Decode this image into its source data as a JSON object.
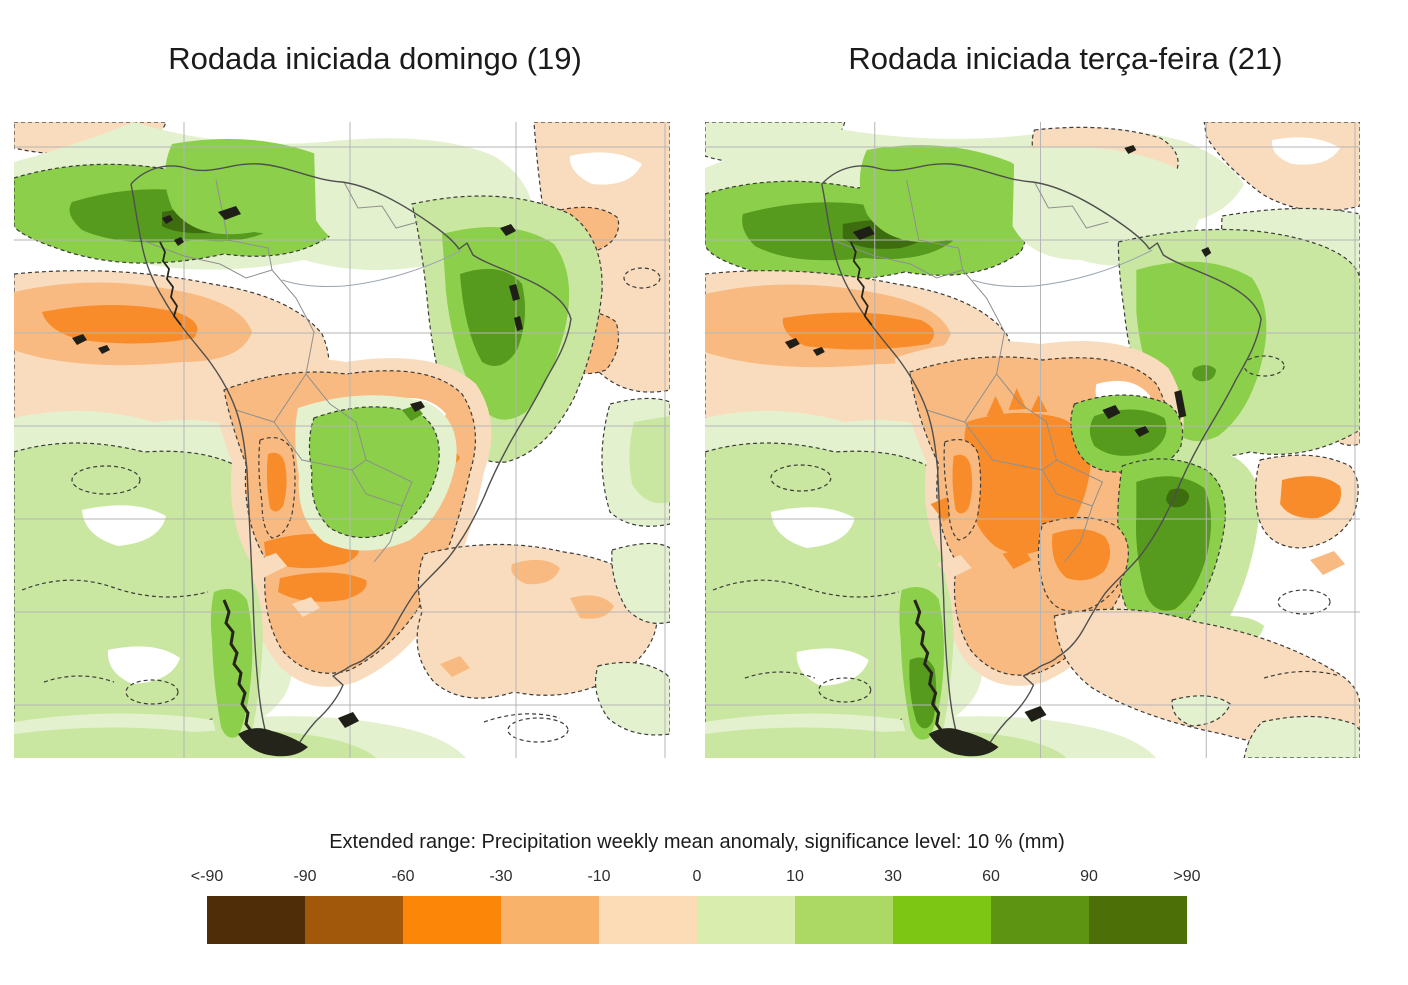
{
  "titles": {
    "left": "Rodada iniciada domingo (19)",
    "right": "Rodada iniciada terça-feira (21)"
  },
  "legend": {
    "title": "Extended range: Precipitation weekly mean anomaly, significance level: 10 % (mm)",
    "ticks": [
      "<-90",
      "-90",
      "-60",
      "-30",
      "-10",
      "0",
      "10",
      "30",
      "60",
      "90",
      ">90"
    ],
    "colors": [
      "#4f2d08",
      "#a2580b",
      "#fb8607",
      "#f9b269",
      "#fbdcb7",
      "#d9edae",
      "#abd964",
      "#7dc714",
      "#5d9412",
      "#4c7007"
    ]
  },
  "map_palette": {
    "pale_peach": "#f9dcbd",
    "light_orange": "#f8ba80",
    "orange": "#f88c2b",
    "brown": "#5c3408",
    "pale_green": "#e4f1cf",
    "light_green": "#c9e7a0",
    "mid_green": "#8ccf4a",
    "dark_green": "#569a1e",
    "vdark_green": "#3d6d0e",
    "white": "#ffffff",
    "grid": "#b5b5b5",
    "coast": "#4f4f4f",
    "border": "#8f8f8f",
    "river": "#9aa4b0",
    "contour": "#3c3c3c",
    "terrain": "#24241b"
  }
}
